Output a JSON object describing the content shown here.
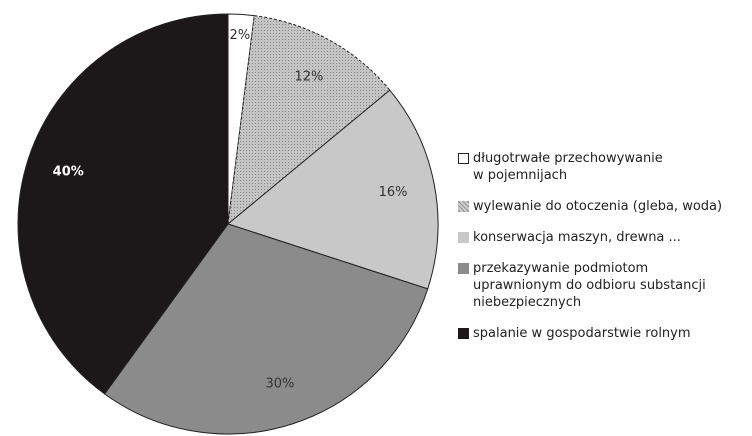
{
  "chart_data": {
    "type": "pie",
    "categories": [
      "długotrwałe przechowywanie\nw pojemnijach",
      "wylewanie do otoczenia (gleba, woda)",
      "konserwacja maszyn, drewna ...",
      "przekazywanie podmiotom\nuprawnionym do odbioru substancji\nniebezpiecznych",
      "spalanie w gospodarstwie rolnym"
    ],
    "values": [
      2,
      12,
      16,
      30,
      40
    ],
    "value_labels": [
      "2%",
      "12%",
      "16%",
      "30%",
      "40%"
    ],
    "colors": [
      "#ffffff",
      "#c4c4c4",
      "#c8c8c8",
      "#8b8b8b",
      "#1c1718"
    ],
    "legend": "right"
  }
}
